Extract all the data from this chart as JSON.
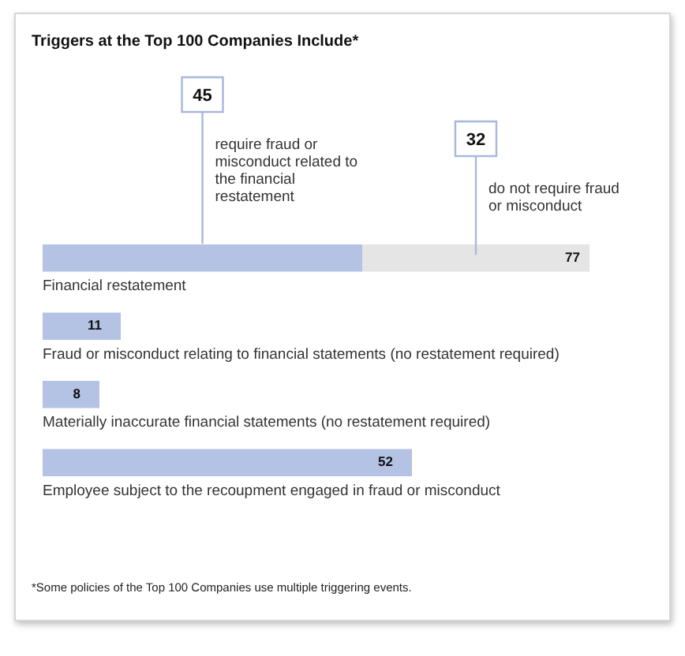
{
  "chart_data": {
    "type": "bar",
    "orientation": "horizontal",
    "stacked": true,
    "title": "Triggers at the Top 100 Companies Include*",
    "categories": [
      "Financial restatement",
      "Fraud or misconduct relating to financial statements (no restatement required)",
      "Materially inaccurate financial statements (no restatement required)",
      "Employee subject to the recoupment engaged in fraud or misconduct"
    ],
    "series": [
      {
        "name": "require fraud or misconduct related to the financial restatement",
        "color": "#b4c2e4",
        "values": [
          45,
          11,
          8,
          52
        ],
        "value_labels": [
          "45",
          "11",
          "8",
          "52"
        ]
      },
      {
        "name": "do not require fraud or misconduct",
        "color": "#e5e5e5",
        "values": [
          32,
          null,
          null,
          null
        ],
        "value_labels": [
          "32",
          null,
          null,
          null
        ]
      }
    ],
    "totals": [
      "77",
      null,
      null,
      null
    ],
    "annotations": [
      "*Some policies of the Top 100 Companies use multiple triggering events."
    ],
    "tick_labels": false,
    "grid": false,
    "legend": false
  }
}
